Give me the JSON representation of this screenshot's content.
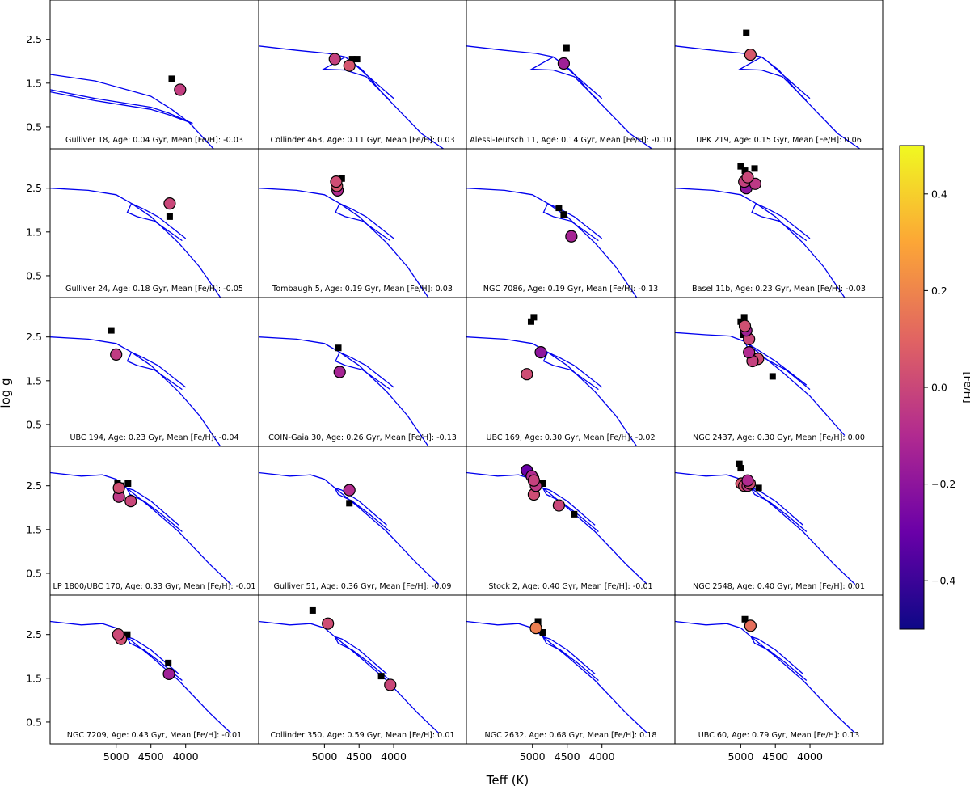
{
  "colors": {
    "isochrone": "#0000ee",
    "photometric_marker": "#000000",
    "colormap": [
      "#0d0887",
      "#6a00a8",
      "#b12a90",
      "#e16462",
      "#fca636",
      "#f0f921"
    ]
  },
  "chart_data": {
    "type": "scatter",
    "xlabel": "Teff (K)",
    "ylabel": "log g",
    "x_ticks": [
      "5000",
      "4500",
      "4000"
    ],
    "y_ticks": [
      "0.5",
      "1.5",
      "2.5"
    ],
    "xlim": [
      5950,
      2950
    ],
    "ylim": [
      3.4,
      0.0
    ],
    "x_inverted": true,
    "y_inverted": true,
    "colorbar": {
      "label": "[Fe/H]",
      "range": [
        -0.5,
        0.5
      ],
      "ticks": [
        "0.4",
        "0.2",
        "0.0",
        "−0.2",
        "−0.4"
      ],
      "tick_values": [
        0.4,
        0.2,
        0.0,
        -0.2,
        -0.4
      ],
      "colormap": "plasma"
    },
    "panels": [
      {
        "cluster": "Gulliver 18",
        "age": "0.04",
        "feh": "-0.03",
        "label": "Gulliver 18, Age: 0.04 Gyr, Mean [Fe/H]: -0.03",
        "type": 1,
        "photometric": [
          [
            4200,
            1.6
          ]
        ],
        "spectroscopic": [
          [
            4080,
            1.35,
            -0.03
          ]
        ]
      },
      {
        "cluster": "Collinder 463",
        "age": "0.11",
        "feh": "0.03",
        "label": "Collinder 463, Age: 0.11 Gyr, Mean [Fe/H]: 0.03",
        "type": 2,
        "photometric": [
          [
            4600,
            2.05
          ],
          [
            4530,
            2.05
          ]
        ],
        "spectroscopic": [
          [
            4850,
            2.05,
            -0.02
          ],
          [
            4640,
            1.9,
            0.05
          ]
        ]
      },
      {
        "cluster": "Alessi-Teutsch 11",
        "age": "0.14",
        "feh": "-0.10",
        "label": "Alessi-Teutsch 11, Age: 0.14 Gyr, Mean [Fe/H]: -0.10",
        "type": 2,
        "photometric": [
          [
            4510,
            2.3
          ]
        ],
        "spectroscopic": [
          [
            4550,
            1.95,
            -0.15
          ]
        ]
      },
      {
        "cluster": "UPK 219",
        "age": "0.15",
        "feh": "0.06",
        "label": "UPK 219, Age: 0.15 Gyr, Mean [Fe/H]: 0.06",
        "type": 2,
        "photometric": [
          [
            4920,
            2.65
          ]
        ],
        "spectroscopic": [
          [
            4860,
            2.15,
            0.06
          ]
        ]
      },
      {
        "cluster": "Gulliver 24",
        "age": "0.18",
        "feh": "-0.05",
        "label": "Gulliver 24, Age: 0.18 Gyr, Mean [Fe/H]: -0.05",
        "type": 3,
        "photometric": [
          [
            4230,
            1.85
          ]
        ],
        "spectroscopic": [
          [
            4230,
            2.15,
            0.0
          ]
        ]
      },
      {
        "cluster": "Tombaugh 5",
        "age": "0.19",
        "feh": "0.03",
        "label": "Tombaugh 5, Age: 0.19 Gyr, Mean [Fe/H]: 0.03",
        "type": 3,
        "photometric": [
          [
            4800,
            2.7
          ],
          [
            4750,
            2.72
          ]
        ],
        "spectroscopic": [
          [
            4810,
            2.45,
            -0.1
          ],
          [
            4820,
            2.55,
            0.05
          ],
          [
            4830,
            2.65,
            0.02
          ]
        ]
      },
      {
        "cluster": "NGC 7086",
        "age": "0.19",
        "feh": "-0.13",
        "label": "NGC 7086, Age: 0.19 Gyr, Mean [Fe/H]: -0.13",
        "type": 3,
        "photometric": [
          [
            4550,
            1.9
          ],
          [
            4620,
            2.05
          ]
        ],
        "spectroscopic": [
          [
            4440,
            1.4,
            -0.13
          ]
        ]
      },
      {
        "cluster": "Basel 11b",
        "age": "0.23",
        "feh": "-0.03",
        "label": "Basel 11b, Age: 0.23 Gyr, Mean [Fe/H]: -0.03",
        "type": 3,
        "photometric": [
          [
            5000,
            3.0
          ],
          [
            4940,
            2.9
          ],
          [
            4900,
            2.7
          ],
          [
            4800,
            2.95
          ]
        ],
        "spectroscopic": [
          [
            4920,
            2.5,
            -0.2
          ],
          [
            4790,
            2.6,
            -0.05
          ],
          [
            4950,
            2.65,
            -0.02
          ],
          [
            4900,
            2.75,
            0.0
          ]
        ]
      },
      {
        "cluster": "UBC 194",
        "age": "0.23",
        "feh": "-0.04",
        "label": "UBC 194, Age: 0.23 Gyr, Mean [Fe/H]: -0.04",
        "type": 3,
        "photometric": [
          [
            5070,
            2.65
          ]
        ],
        "spectroscopic": [
          [
            5000,
            2.1,
            -0.04
          ]
        ]
      },
      {
        "cluster": "COIN-Gaia 30",
        "age": "0.26",
        "feh": "-0.13",
        "label": "COIN-Gaia 30, Age: 0.26 Gyr, Mean [Fe/H]: -0.13",
        "type": 3,
        "photometric": [
          [
            4800,
            2.25
          ]
        ],
        "spectroscopic": [
          [
            4780,
            1.7,
            -0.13
          ]
        ]
      },
      {
        "cluster": "UBC 169",
        "age": "0.30",
        "feh": "-0.02",
        "label": "UBC 169, Age: 0.30 Gyr, Mean [Fe/H]: -0.02",
        "type": 3,
        "photometric": [
          [
            5020,
            2.85
          ],
          [
            4980,
            2.95
          ]
        ],
        "spectroscopic": [
          [
            5080,
            1.65,
            0.02
          ],
          [
            4880,
            2.15,
            -0.2
          ]
        ]
      },
      {
        "cluster": "NGC 2437",
        "age": "0.30",
        "feh": "0.00",
        "label": "NGC 2437, Age: 0.30 Gyr, Mean [Fe/H]: 0.00",
        "type": 4,
        "photometric": [
          [
            4540,
            1.6
          ],
          [
            4900,
            2.5
          ],
          [
            4960,
            2.55
          ],
          [
            5000,
            2.85
          ],
          [
            4950,
            2.95
          ],
          [
            4940,
            2.75
          ]
        ],
        "spectroscopic": [
          [
            4750,
            2.0,
            0.02
          ],
          [
            4830,
            1.95,
            -0.02
          ],
          [
            4880,
            2.15,
            -0.1
          ],
          [
            4880,
            2.45,
            0.0
          ],
          [
            4920,
            2.65,
            -0.15
          ],
          [
            4940,
            2.75,
            0.03
          ]
        ]
      },
      {
        "cluster": "LP 1800/UBC 170",
        "age": "0.33",
        "feh": "-0.01",
        "label": "LP 1800/UBC 170, Age: 0.33 Gyr, Mean [Fe/H]: -0.01",
        "type": 5,
        "photometric": [
          [
            4980,
            2.55
          ],
          [
            4930,
            2.5
          ],
          [
            4830,
            2.55
          ]
        ],
        "spectroscopic": [
          [
            4790,
            2.15,
            0.0
          ],
          [
            4960,
            2.25,
            -0.05
          ],
          [
            4960,
            2.45,
            0.03
          ]
        ]
      },
      {
        "cluster": "Gulliver 51",
        "age": "0.36",
        "feh": "-0.09",
        "label": "Gulliver 51, Age: 0.36 Gyr, Mean [Fe/H]: -0.09",
        "type": 5,
        "photometric": [
          [
            4640,
            2.1
          ]
        ],
        "spectroscopic": [
          [
            4640,
            2.4,
            -0.09
          ]
        ]
      },
      {
        "cluster": "Stock 2",
        "age": "0.40",
        "feh": "-0.01",
        "label": "Stock 2, Age: 0.40 Gyr, Mean [Fe/H]: -0.01",
        "type": 5,
        "photometric": [
          [
            4400,
            1.85
          ],
          [
            4850,
            2.55
          ],
          [
            4900,
            2.55
          ],
          [
            4950,
            2.65
          ],
          [
            5000,
            2.75
          ],
          [
            5050,
            2.85
          ]
        ],
        "spectroscopic": [
          [
            4620,
            2.05,
            0.0
          ],
          [
            4980,
            2.3,
            0.02
          ],
          [
            4950,
            2.5,
            -0.05
          ],
          [
            5080,
            2.85,
            -0.3
          ],
          [
            5010,
            2.72,
            -0.1
          ],
          [
            4980,
            2.62,
            -0.02
          ]
        ]
      },
      {
        "cluster": "NGC 2548",
        "age": "0.40",
        "feh": "0.01",
        "label": "NGC 2548, Age: 0.40 Gyr, Mean [Fe/H]: 0.01",
        "type": 5,
        "photometric": [
          [
            4740,
            2.45
          ],
          [
            5000,
            2.9
          ],
          [
            5020,
            3.0
          ]
        ],
        "spectroscopic": [
          [
            4990,
            2.55,
            0.05
          ],
          [
            4950,
            2.5,
            0.03
          ],
          [
            4900,
            2.5,
            -0.05
          ],
          [
            4870,
            2.55,
            0.02
          ],
          [
            4900,
            2.62,
            -0.1
          ]
        ]
      },
      {
        "cluster": "NGC 7209",
        "age": "0.43",
        "feh": "-0.01",
        "label": "NGC 7209, Age: 0.43 Gyr, Mean [Fe/H]: -0.01",
        "type": 5,
        "photometric": [
          [
            4250,
            1.85
          ],
          [
            4840,
            2.5
          ]
        ],
        "spectroscopic": [
          [
            4240,
            1.6,
            -0.15
          ],
          [
            4930,
            2.4,
            0.03
          ],
          [
            4970,
            2.5,
            0.01
          ]
        ]
      },
      {
        "cluster": "Collinder 350",
        "age": "0.59",
        "feh": "0.01",
        "label": "Collinder 350, Age: 0.59 Gyr, Mean [Fe/H]: 0.01",
        "type": 5,
        "photometric": [
          [
            4180,
            1.55
          ],
          [
            5170,
            3.05
          ]
        ],
        "spectroscopic": [
          [
            4050,
            1.35,
            0.0
          ],
          [
            4950,
            2.75,
            0.02
          ]
        ]
      },
      {
        "cluster": "NGC 2632",
        "age": "0.68",
        "feh": "0.18",
        "label": "NGC 2632, Age: 0.68 Gyr, Mean [Fe/H]: 0.18",
        "type": 5,
        "photometric": [
          [
            4850,
            2.55
          ],
          [
            4920,
            2.8
          ]
        ],
        "spectroscopic": [
          [
            4950,
            2.65,
            0.18
          ]
        ]
      },
      {
        "cluster": "UBC 60",
        "age": "0.79",
        "feh": "0.13",
        "label": "UBC 60, Age: 0.79 Gyr, Mean [Fe/H]: 0.13",
        "type": 5,
        "photometric": [
          [
            4940,
            2.85
          ]
        ],
        "spectroscopic": [
          [
            4860,
            2.7,
            0.13
          ]
        ]
      }
    ]
  }
}
